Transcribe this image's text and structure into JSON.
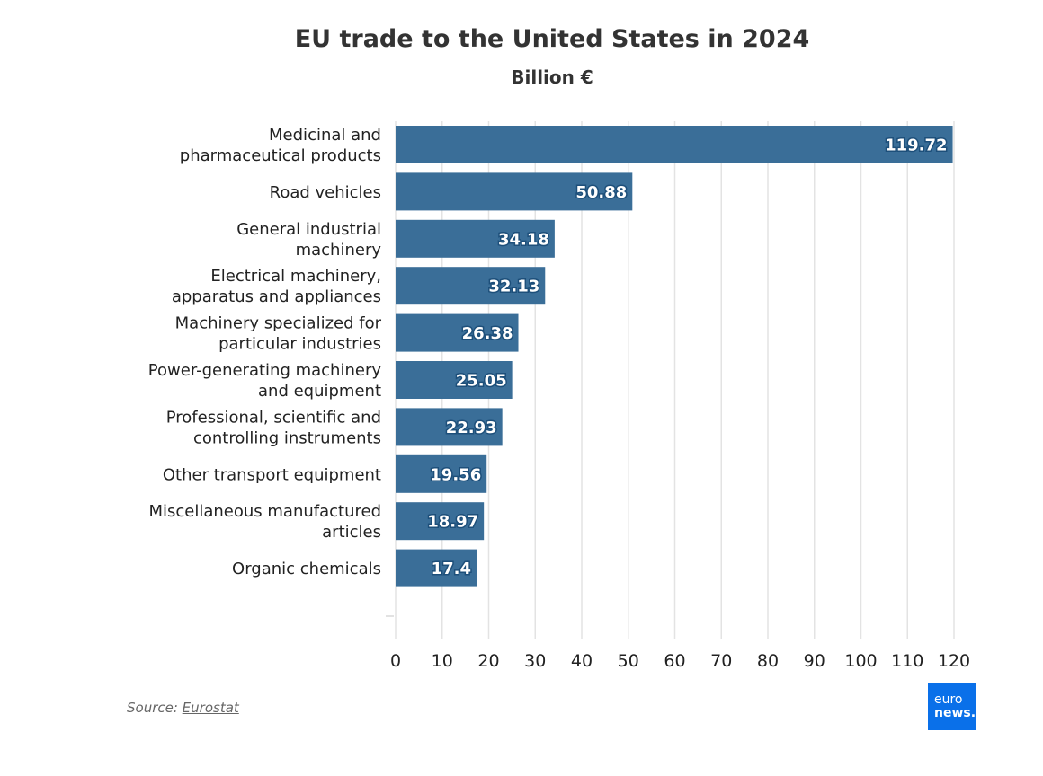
{
  "chart_data": {
    "type": "bar",
    "orientation": "horizontal",
    "title": "EU trade to the United States in 2024",
    "subtitle": "Billion €",
    "categories": [
      [
        "Medicinal and",
        "pharmaceutical products"
      ],
      [
        "Road vehicles"
      ],
      [
        "General industrial",
        "machinery"
      ],
      [
        "Electrical machinery,",
        "apparatus and appliances"
      ],
      [
        "Machinery specialized for",
        "particular industries"
      ],
      [
        "Power-generating machinery",
        "and equipment"
      ],
      [
        "Professional, scientific and",
        "controlling instruments"
      ],
      [
        "Other transport equipment"
      ],
      [
        "Miscellaneous manufactured",
        "articles"
      ],
      [
        "Organic chemicals"
      ]
    ],
    "values": [
      119.72,
      50.88,
      34.18,
      32.13,
      26.38,
      25.05,
      22.93,
      19.56,
      18.97,
      17.4
    ],
    "value_labels": [
      "119.72",
      "50.88",
      "34.18",
      "32.13",
      "26.38",
      "25.05",
      "22.93",
      "19.56",
      "18.97",
      "17.4"
    ],
    "xlim": [
      0,
      120
    ],
    "x_ticks": [
      "0",
      "10",
      "20",
      "30",
      "40",
      "50",
      "60",
      "70",
      "80",
      "90",
      "100",
      "110",
      "120"
    ],
    "grid": true,
    "bar_color": "#3a6e98",
    "label_outline_color": "#1d4f7a"
  },
  "source": {
    "prefix": "Source: ",
    "link_text": "Eurostat"
  },
  "logo": {
    "line1": "euro",
    "line2": "news."
  }
}
